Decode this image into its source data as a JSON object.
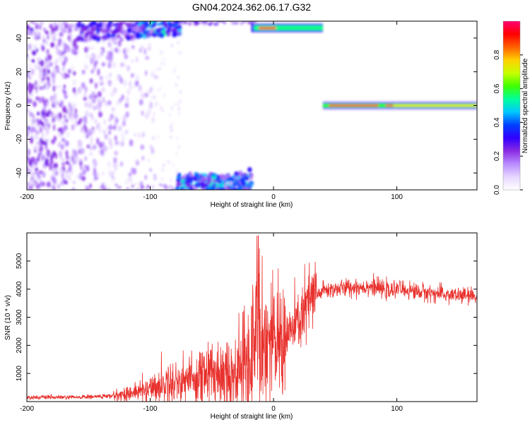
{
  "title": "GN04.2024.362.06.17.G32",
  "colors": {
    "snr_line": "#e8302c",
    "colormap": [
      "#ffffff",
      "#e6d6ff",
      "#b98cff",
      "#8a2be2",
      "#3000ff",
      "#0040ff",
      "#00c8ff",
      "#00ff9a",
      "#40ff00",
      "#c8ff00",
      "#ffd000",
      "#ff6000",
      "#ff0000",
      "#ff0070"
    ]
  },
  "chart_data": [
    {
      "type": "heatmap",
      "xlabel": "Height of straight line (km)",
      "ylabel": "Frequency (Hz)",
      "xlim": [
        -200,
        165
      ],
      "ylim": [
        -50,
        50
      ],
      "xticks": [
        -200,
        -100,
        0,
        100
      ],
      "yticks": [
        -40,
        -20,
        0,
        20,
        40
      ],
      "colorbar": {
        "label": "Normalized spectral amplitude",
        "range": [
          0,
          1
        ],
        "ticks": [
          "0.0",
          "0.2",
          "0.4",
          "0.6",
          "0.8"
        ],
        "tick_values": [
          0,
          0.2,
          0.4,
          0.6,
          0.8
        ]
      },
      "features": [
        {
          "name": "noise-cloud",
          "x": [
            -200,
            -100
          ],
          "y": [
            -50,
            50
          ],
          "amplitude": 0.15
        },
        {
          "name": "upper-alias-low",
          "x": [
            -160,
            -75
          ],
          "y": [
            38,
            50
          ],
          "amplitude": 0.3
        },
        {
          "name": "upper-alias-high",
          "x": [
            -20,
            40
          ],
          "y": [
            44,
            48
          ],
          "amplitude": 0.9
        },
        {
          "name": "lower-alias",
          "x": [
            -78,
            -18
          ],
          "y": [
            -50,
            -40
          ],
          "amplitude": 0.35
        },
        {
          "name": "main-carrier",
          "x": [
            40,
            165
          ],
          "y": [
            -1,
            1
          ],
          "amplitude": 0.9
        }
      ]
    },
    {
      "type": "line",
      "xlabel": "Height of straight line (km)",
      "ylabel": "SNR (10 * v/v)",
      "xlim": [
        -200,
        165
      ],
      "ylim": [
        0,
        6000
      ],
      "xticks": [
        -200,
        -100,
        0,
        100
      ],
      "yticks": [
        1000,
        2000,
        3000,
        4000,
        5000
      ],
      "series": [
        {
          "x": [
            -200,
            -160,
            -130,
            -110,
            -90,
            -70,
            -50,
            -40,
            -30,
            -20,
            -15,
            -12,
            -10,
            -5,
            0,
            10,
            20,
            30,
            40,
            60,
            80,
            95,
            100,
            120,
            140,
            165
          ],
          "y": [
            150,
            150,
            200,
            350,
            600,
            800,
            1000,
            1100,
            1000,
            1500,
            2200,
            3500,
            2200,
            2200,
            2000,
            2300,
            2800,
            3600,
            3950,
            4050,
            4100,
            3900,
            4000,
            3900,
            3800,
            3750
          ]
        }
      ]
    }
  ]
}
